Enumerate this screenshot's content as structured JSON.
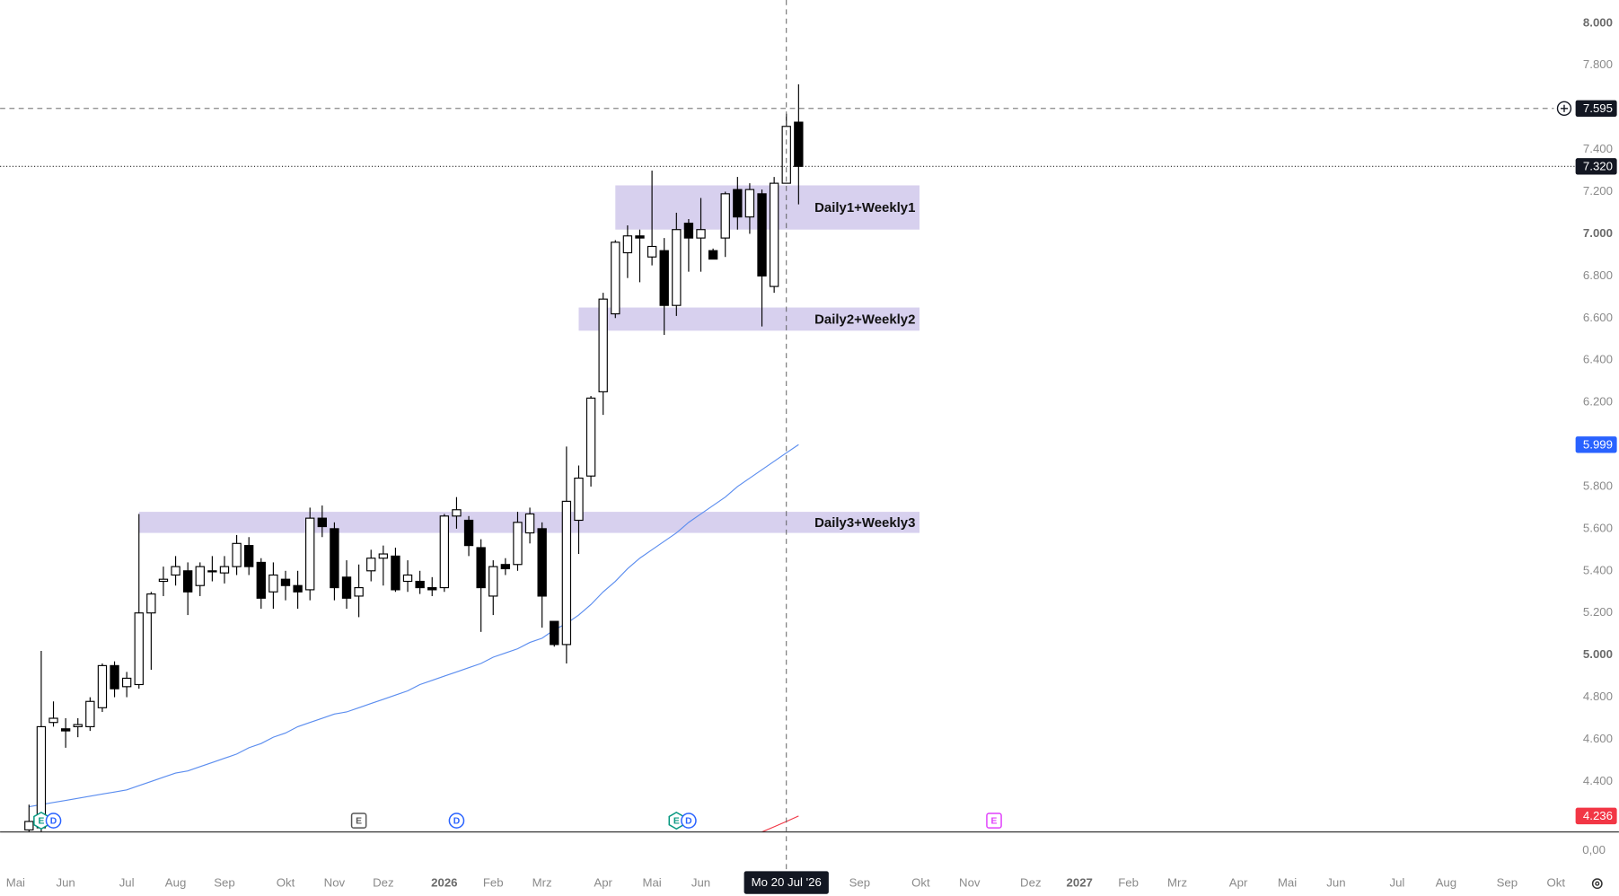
{
  "chart_data": {
    "type": "candlestick",
    "up_color": "#ffffff",
    "down_color": "#000000",
    "open": [
      4.17,
      4.18,
      4.68,
      4.65,
      4.66,
      4.66,
      4.75,
      4.95,
      4.85,
      4.86,
      5.2,
      5.35,
      5.38,
      5.4,
      5.33,
      5.4,
      5.39,
      5.42,
      5.52,
      5.44,
      5.3,
      5.36,
      5.33,
      5.31,
      5.65,
      5.6,
      5.37,
      5.28,
      5.4,
      5.46,
      5.47,
      5.35,
      5.35,
      5.32,
      5.32,
      5.66,
      5.64,
      5.51,
      5.28,
      5.43,
      5.43,
      5.58,
      5.6,
      5.16,
      5.05,
      5.64,
      5.85,
      6.25,
      6.62,
      6.91,
      6.99,
      6.89,
      6.92,
      6.66,
      7.05,
      6.98,
      6.92,
      6.98,
      7.21,
      7.08,
      7.19,
      6.75,
      7.24,
      7.53
    ],
    "high": [
      4.29,
      5.02,
      4.78,
      4.7,
      4.7,
      4.8,
      4.96,
      4.97,
      4.92,
      5.67,
      5.3,
      5.42,
      5.47,
      5.44,
      5.44,
      5.47,
      5.47,
      5.57,
      5.56,
      5.46,
      5.44,
      5.4,
      5.4,
      5.7,
      5.71,
      5.63,
      5.45,
      5.43,
      5.5,
      5.52,
      5.51,
      5.45,
      5.4,
      5.37,
      5.67,
      5.75,
      5.66,
      5.55,
      5.45,
      5.46,
      5.68,
      5.7,
      5.63,
      5.16,
      5.99,
      5.9,
      6.23,
      6.72,
      6.97,
      7.04,
      7.02,
      7.3,
      6.98,
      7.1,
      7.07,
      7.17,
      6.93,
      7.2,
      7.27,
      7.24,
      7.21,
      7.27,
      7.57,
      7.71
    ],
    "low": [
      4.16,
      4.16,
      4.66,
      4.56,
      4.61,
      4.64,
      4.73,
      4.8,
      4.8,
      4.84,
      4.93,
      5.28,
      5.33,
      5.19,
      5.28,
      5.35,
      5.34,
      5.38,
      5.38,
      5.22,
      5.22,
      5.26,
      5.22,
      5.26,
      5.56,
      5.26,
      5.22,
      5.18,
      5.35,
      5.33,
      5.3,
      5.3,
      5.29,
      5.28,
      5.3,
      5.6,
      5.47,
      5.11,
      5.19,
      5.38,
      5.4,
      5.53,
      5.13,
      5.04,
      4.96,
      5.48,
      5.8,
      6.14,
      6.6,
      6.79,
      6.77,
      6.85,
      6.52,
      6.61,
      6.82,
      6.82,
      6.88,
      6.89,
      7.02,
      7.0,
      6.56,
      6.72,
      7.24,
      7.14
    ],
    "close": [
      4.21,
      4.66,
      4.7,
      4.64,
      4.67,
      4.78,
      4.95,
      4.84,
      4.89,
      5.2,
      5.29,
      5.36,
      5.42,
      5.3,
      5.42,
      5.4,
      5.42,
      5.53,
      5.42,
      5.27,
      5.38,
      5.33,
      5.3,
      5.65,
      5.61,
      5.32,
      5.27,
      5.32,
      5.46,
      5.48,
      5.31,
      5.38,
      5.32,
      5.31,
      5.66,
      5.69,
      5.52,
      5.32,
      5.42,
      5.41,
      5.63,
      5.67,
      5.28,
      5.05,
      5.73,
      5.84,
      6.22,
      6.69,
      6.96,
      6.99,
      6.98,
      6.94,
      6.66,
      7.02,
      6.98,
      7.02,
      6.88,
      7.19,
      7.08,
      7.21,
      6.8,
      7.24,
      7.51,
      7.32
    ],
    "moving_average": {
      "color": "#5b8def",
      "values": [
        4.28,
        4.29,
        4.3,
        4.31,
        4.32,
        4.33,
        4.34,
        4.35,
        4.36,
        4.38,
        4.4,
        4.42,
        4.44,
        4.45,
        4.47,
        4.49,
        4.51,
        4.53,
        4.56,
        4.58,
        4.61,
        4.63,
        4.66,
        4.68,
        4.7,
        4.72,
        4.73,
        4.75,
        4.77,
        4.79,
        4.81,
        4.83,
        4.86,
        4.88,
        4.9,
        4.92,
        4.94,
        4.96,
        4.99,
        5.01,
        5.03,
        5.06,
        5.08,
        5.12,
        5.15,
        5.19,
        5.24,
        5.3,
        5.35,
        5.41,
        5.46,
        5.5,
        5.54,
        5.58,
        5.63,
        5.67,
        5.71,
        5.75,
        5.8,
        5.84,
        5.88,
        5.92,
        5.96,
        5.999
      ]
    },
    "red_line": {
      "color": "#f23645",
      "values": [
        null,
        null,
        null,
        null,
        null,
        null,
        null,
        null,
        null,
        null,
        null,
        null,
        null,
        null,
        null,
        null,
        null,
        null,
        null,
        null,
        null,
        null,
        null,
        null,
        null,
        null,
        null,
        null,
        null,
        null,
        null,
        null,
        null,
        null,
        null,
        null,
        null,
        null,
        null,
        null,
        null,
        null,
        null,
        null,
        null,
        null,
        null,
        null,
        null,
        null,
        null,
        null,
        null,
        null,
        null,
        null,
        null,
        null,
        null,
        null,
        4.16,
        4.185,
        4.21,
        4.236
      ]
    },
    "zones": [
      {
        "label": "Daily1+Weekly1",
        "x_start": 48,
        "x_end": 72.9,
        "top": 7.23,
        "bottom": 7.02
      },
      {
        "label": "Daily2+Weekly2",
        "x_start": 45,
        "x_end": 72.9,
        "top": 6.65,
        "bottom": 6.54
      },
      {
        "label": "Daily3+Weekly3",
        "x_start": 9,
        "x_end": 72.9,
        "top": 5.68,
        "bottom": 5.58
      }
    ],
    "zone_color": "#d7d0ee",
    "price_labels": [
      {
        "value": 7.595,
        "color": "#131722",
        "line": "dashed"
      },
      {
        "value": 7.32,
        "label": "7.320",
        "color": "#131722",
        "line": "dotted"
      },
      {
        "value": 5.999,
        "color": "#2962ff"
      },
      {
        "value": 4.236,
        "color": "#f23645"
      }
    ],
    "crosshair": {
      "x": 62,
      "x_label": "Mo 20 Jul '26"
    },
    "events": [
      {
        "x": 1,
        "label": "E",
        "color": "#089981",
        "shape": "hexagon"
      },
      {
        "x": 2,
        "label": "D",
        "color": "#2962ff",
        "shape": "circle"
      },
      {
        "x": 27,
        "label": "E",
        "color": "#555555",
        "shape": "square"
      },
      {
        "x": 35,
        "label": "D",
        "color": "#2962ff",
        "shape": "circle"
      },
      {
        "x": 53,
        "label": "E",
        "color": "#089981",
        "shape": "hexagon"
      },
      {
        "x": 54,
        "label": "D",
        "color": "#2962ff",
        "shape": "circle"
      },
      {
        "x": 79,
        "label": "E",
        "color": "#e040fb",
        "shape": "square"
      }
    ],
    "xlim": [
      -2.37,
      126.1
    ],
    "ylim": [
      4.16,
      8.11
    ],
    "yticks": [
      {
        "value": 8,
        "label": "8.000",
        "bold": true
      },
      {
        "value": 7.8,
        "label": "7.800"
      },
      {
        "value": 7.4,
        "label": "7.400"
      },
      {
        "value": 7.2,
        "label": "7.200"
      },
      {
        "value": 7,
        "label": "7.000",
        "bold": true
      },
      {
        "value": 6.8,
        "label": "6.800"
      },
      {
        "value": 6.6,
        "label": "6.600"
      },
      {
        "value": 6.4,
        "label": "6.400"
      },
      {
        "value": 6.2,
        "label": "6.200"
      },
      {
        "value": 5.8,
        "label": "5.800"
      },
      {
        "value": 5.6,
        "label": "5.600"
      },
      {
        "value": 5.4,
        "label": "5.400"
      },
      {
        "value": 5.2,
        "label": "5.200"
      },
      {
        "value": 5,
        "label": "5.000",
        "bold": true
      },
      {
        "value": 4.8,
        "label": "4.800"
      },
      {
        "value": 4.6,
        "label": "4.600"
      },
      {
        "value": 4.4,
        "label": "4.400"
      }
    ],
    "xticks": [
      {
        "value": -1.1,
        "label": "Mai"
      },
      {
        "value": 3,
        "label": "Jun"
      },
      {
        "value": 8,
        "label": "Jul"
      },
      {
        "value": 12,
        "label": "Aug"
      },
      {
        "value": 16,
        "label": "Sep"
      },
      {
        "value": 21,
        "label": "Okt"
      },
      {
        "value": 25,
        "label": "Nov"
      },
      {
        "value": 29,
        "label": "Dez"
      },
      {
        "value": 34,
        "label": "2026",
        "bold": true
      },
      {
        "value": 38,
        "label": "Feb"
      },
      {
        "value": 42,
        "label": "Mrz"
      },
      {
        "value": 47,
        "label": "Apr"
      },
      {
        "value": 51,
        "label": "Mai"
      },
      {
        "value": 55,
        "label": "Jun"
      },
      {
        "value": 68,
        "label": "Sep"
      },
      {
        "value": 73,
        "label": "Okt"
      },
      {
        "value": 77,
        "label": "Nov"
      },
      {
        "value": 82,
        "label": "Dez"
      },
      {
        "value": 86,
        "label": "2027",
        "bold": true
      },
      {
        "value": 90,
        "label": "Feb"
      },
      {
        "value": 94,
        "label": "Mrz"
      },
      {
        "value": 99,
        "label": "Apr"
      },
      {
        "value": 103,
        "label": "Mai"
      },
      {
        "value": 107,
        "label": "Jun"
      },
      {
        "value": 112,
        "label": "Jul"
      },
      {
        "value": 116,
        "label": "Aug"
      },
      {
        "value": 121,
        "label": "Sep"
      },
      {
        "value": 125,
        "label": "Okt"
      }
    ],
    "lower_pane": {
      "yticks": [
        {
          "value": 0,
          "label": "0,00"
        }
      ]
    }
  }
}
